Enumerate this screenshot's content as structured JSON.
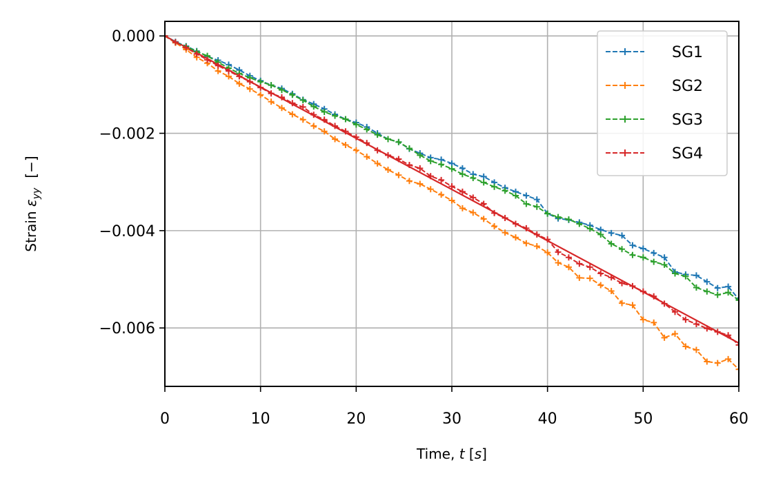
{
  "chart_data": {
    "type": "line",
    "xlabel_prefix": "Time, ",
    "xlabel_var": "t",
    "xlabel_unit_open": " [",
    "xlabel_unit": "s",
    "xlabel_unit_close": "]",
    "ylabel_prefix": "Strain ",
    "ylabel_var": "ε",
    "ylabel_sub": "yy",
    "ylabel_unit": "[−]",
    "xlim": [
      0,
      60
    ],
    "ylim": [
      -0.0072,
      0.0003
    ],
    "xticks": [
      0,
      10,
      20,
      30,
      40,
      50,
      60
    ],
    "xtick_labels": [
      "0",
      "10",
      "20",
      "30",
      "40",
      "50",
      "60"
    ],
    "yticks": [
      0.0,
      -0.002,
      -0.004,
      -0.006
    ],
    "ytick_labels": [
      "0.000",
      "−0.002",
      "−0.004",
      "−0.006"
    ],
    "grid": true,
    "legend_position": "top-right",
    "x": [
      0,
      1.11,
      2.22,
      3.33,
      4.44,
      5.56,
      6.67,
      7.78,
      8.89,
      10.0,
      11.11,
      12.22,
      13.33,
      14.44,
      15.56,
      16.67,
      17.78,
      18.89,
      20.0,
      21.11,
      22.22,
      23.33,
      24.44,
      25.56,
      26.67,
      27.78,
      28.89,
      30.0,
      31.11,
      32.22,
      33.33,
      34.44,
      35.56,
      36.67,
      37.78,
      38.89,
      40.0,
      41.11,
      42.22,
      43.33,
      44.44,
      45.56,
      46.67,
      47.78,
      48.89,
      50.0,
      51.11,
      52.22,
      53.33,
      54.44,
      55.56,
      56.67,
      57.78,
      58.89,
      60.0
    ],
    "series": [
      {
        "name": "SG1",
        "color": "#1f77b4",
        "values": [
          0,
          -0.00012,
          -0.00021,
          -0.00031,
          -0.00042,
          -0.0005,
          -0.00059,
          -0.0007,
          -0.00082,
          -0.00092,
          -0.00101,
          -0.00108,
          -0.00119,
          -0.00131,
          -0.0014,
          -0.0015,
          -0.00161,
          -0.00171,
          -0.00178,
          -0.00187,
          -0.002,
          -0.00212,
          -0.00218,
          -0.00232,
          -0.00241,
          -0.0025,
          -0.00254,
          -0.00262,
          -0.00272,
          -0.00284,
          -0.00289,
          -0.00301,
          -0.00312,
          -0.0032,
          -0.00328,
          -0.00336,
          -0.00365,
          -0.00375,
          -0.00378,
          -0.00383,
          -0.00389,
          -0.00398,
          -0.00405,
          -0.0041,
          -0.0043,
          -0.00437,
          -0.00446,
          -0.00455,
          -0.00485,
          -0.0049,
          -0.00492,
          -0.00505,
          -0.00518,
          -0.00515,
          -0.00541
        ]
      },
      {
        "name": "SG2",
        "color": "#ff7f0e",
        "values": [
          0,
          -0.00014,
          -0.00028,
          -0.00044,
          -0.00056,
          -0.00072,
          -0.00083,
          -0.00098,
          -0.00109,
          -0.00121,
          -0.00135,
          -0.00148,
          -0.00161,
          -0.00172,
          -0.00185,
          -0.00196,
          -0.00212,
          -0.00224,
          -0.00235,
          -0.00248,
          -0.00262,
          -0.00275,
          -0.00286,
          -0.00298,
          -0.00304,
          -0.00315,
          -0.00326,
          -0.00338,
          -0.00354,
          -0.00363,
          -0.00376,
          -0.00391,
          -0.00404,
          -0.00414,
          -0.00426,
          -0.00432,
          -0.00445,
          -0.00466,
          -0.00475,
          -0.00497,
          -0.00498,
          -0.00512,
          -0.00524,
          -0.00549,
          -0.00553,
          -0.00583,
          -0.00589,
          -0.0062,
          -0.00612,
          -0.00638,
          -0.00645,
          -0.00669,
          -0.00672,
          -0.00664,
          -0.00685
        ]
      },
      {
        "name": "SG3",
        "color": "#2ca02c",
        "values": [
          0,
          -0.00013,
          -0.00022,
          -0.00032,
          -0.00041,
          -0.00054,
          -0.00066,
          -0.00077,
          -0.00086,
          -0.00094,
          -0.00101,
          -0.00111,
          -0.00121,
          -0.00132,
          -0.00145,
          -0.00156,
          -0.00164,
          -0.00171,
          -0.00182,
          -0.00192,
          -0.00203,
          -0.00212,
          -0.00218,
          -0.00231,
          -0.00245,
          -0.00257,
          -0.00264,
          -0.00273,
          -0.00284,
          -0.00292,
          -0.00301,
          -0.0031,
          -0.00318,
          -0.00328,
          -0.00345,
          -0.00351,
          -0.00365,
          -0.00372,
          -0.00377,
          -0.00386,
          -0.00396,
          -0.00408,
          -0.00427,
          -0.00438,
          -0.0045,
          -0.00455,
          -0.00464,
          -0.0047,
          -0.00488,
          -0.00494,
          -0.00517,
          -0.00525,
          -0.00532,
          -0.00527,
          -0.00543
        ]
      },
      {
        "name": "SG4",
        "color": "#d62728",
        "values": [
          0,
          -0.00013,
          -0.00024,
          -0.00037,
          -0.00049,
          -0.00061,
          -0.00072,
          -0.00083,
          -0.00094,
          -0.00106,
          -0.00118,
          -0.00126,
          -0.00138,
          -0.00146,
          -0.00162,
          -0.00172,
          -0.00185,
          -0.00196,
          -0.00208,
          -0.0022,
          -0.00235,
          -0.00245,
          -0.00253,
          -0.00265,
          -0.00272,
          -0.00288,
          -0.00296,
          -0.00309,
          -0.0032,
          -0.00332,
          -0.00345,
          -0.00364,
          -0.00374,
          -0.00386,
          -0.00395,
          -0.00408,
          -0.00418,
          -0.00444,
          -0.00455,
          -0.00468,
          -0.00475,
          -0.00488,
          -0.00496,
          -0.00508,
          -0.00514,
          -0.00525,
          -0.00535,
          -0.0055,
          -0.00567,
          -0.00583,
          -0.00592,
          -0.00601,
          -0.00608,
          -0.00615,
          -0.00635
        ]
      }
    ],
    "fit_line": {
      "color": "#d62728",
      "x": [
        0,
        60
      ],
      "y": [
        0,
        -0.00631
      ]
    }
  }
}
